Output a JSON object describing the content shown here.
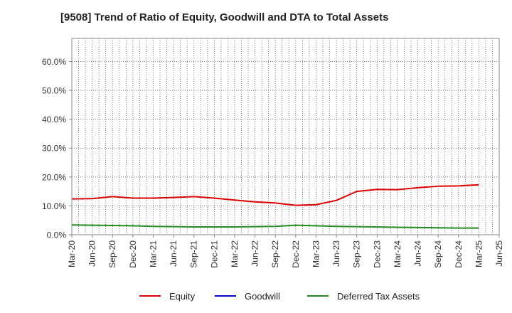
{
  "title": "[9508]  Trend of Ratio of Equity, Goodwill and DTA to Total Assets",
  "chart_data": {
    "type": "line",
    "title": "[9508]  Trend of Ratio of Equity, Goodwill and DTA to Total Assets",
    "x_ticks": [
      "Mar-20",
      "Jun-20",
      "Sep-20",
      "Dec-20",
      "Mar-21",
      "Jun-21",
      "Sep-21",
      "Dec-21",
      "Mar-22",
      "Jun-22",
      "Sep-22",
      "Dec-22",
      "Mar-23",
      "Jun-23",
      "Sep-23",
      "Dec-23",
      "Mar-24",
      "Jun-24",
      "Sep-24",
      "Dec-24",
      "Mar-25",
      "Jun-25"
    ],
    "y_ticks": [
      "0.0%",
      "10.0%",
      "20.0%",
      "30.0%",
      "40.0%",
      "50.0%",
      "60.0%"
    ],
    "ylim": [
      0,
      68
    ],
    "y_unit": "%",
    "grid": true,
    "legend_position": "bottom",
    "series": [
      {
        "name": "Equity",
        "color": "#dd0000",
        "values": [
          12.4,
          12.5,
          13.2,
          12.7,
          12.7,
          12.9,
          13.2,
          12.7,
          12.0,
          11.4,
          11.0,
          10.2,
          10.4,
          11.9,
          15.0,
          15.7,
          15.6,
          16.3,
          16.8,
          16.9,
          17.3
        ]
      },
      {
        "name": "Goodwill",
        "color": "#0000cc",
        "values": []
      },
      {
        "name": "Deferred Tax Assets",
        "color": "#228b22",
        "values": [
          3.4,
          3.3,
          3.2,
          3.1,
          2.9,
          2.8,
          2.7,
          2.7,
          2.7,
          2.8,
          2.9,
          3.3,
          3.1,
          2.9,
          2.8,
          2.7,
          2.6,
          2.5,
          2.4,
          2.3,
          2.3
        ]
      }
    ]
  }
}
